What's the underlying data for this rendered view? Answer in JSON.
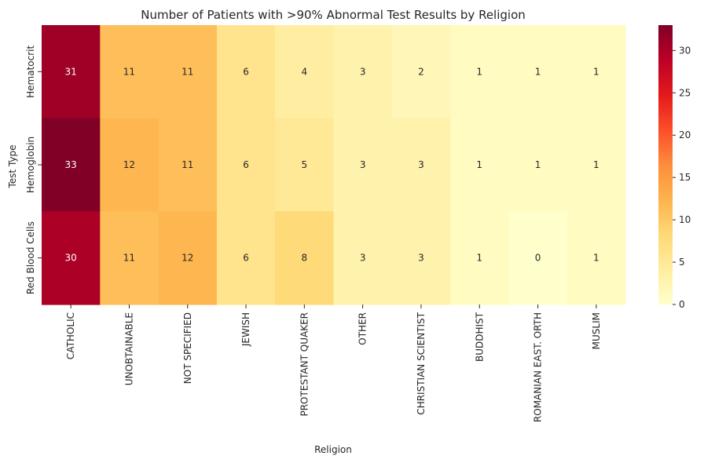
{
  "chart_data": {
    "type": "heatmap",
    "title": "Number of Patients with >90% Abnormal Test Results by Religion",
    "xlabel": "Religion",
    "ylabel": "Test Type",
    "x_categories": [
      "CATHOLIC",
      "UNOBTAINABLE",
      "NOT SPECIFIED",
      "JEWISH",
      "PROTESTANT QUAKER",
      "OTHER",
      "CHRISTIAN SCIENTIST",
      "BUDDHIST",
      "ROMANIAN EAST. ORTH",
      "MUSLIM"
    ],
    "y_categories": [
      "Hematocrit",
      "Hemoglobin",
      "Red Blood Cells"
    ],
    "values": [
      [
        31,
        11,
        11,
        6,
        4,
        3,
        2,
        1,
        1,
        1
      ],
      [
        33,
        12,
        11,
        6,
        5,
        3,
        3,
        1,
        1,
        1
      ],
      [
        30,
        11,
        12,
        6,
        8,
        3,
        3,
        1,
        0,
        1
      ]
    ],
    "colormap": "YlOrRd",
    "vmin": 0,
    "vmax": 33,
    "colorbar_ticks": [
      0,
      5,
      10,
      15,
      20,
      25,
      30
    ],
    "annotations": true
  }
}
